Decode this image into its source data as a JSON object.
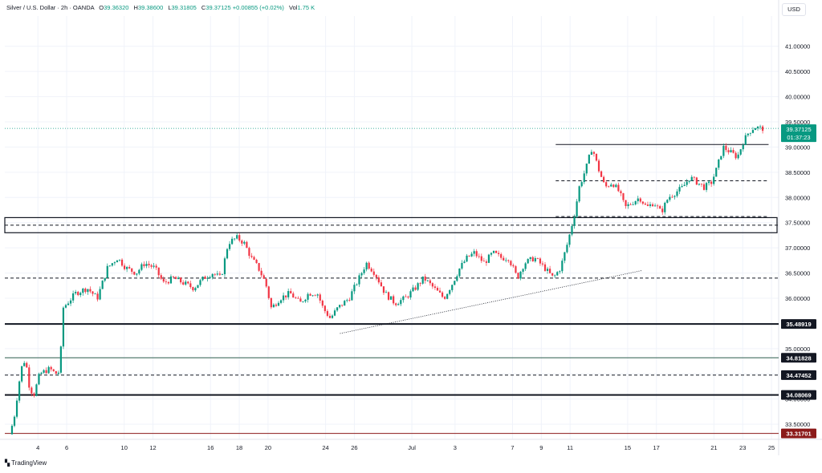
{
  "header": {
    "symbol": "Silver / U.S. Dollar · 2h · OANDA",
    "open_label": "O",
    "open": "39.36320",
    "high_label": "H",
    "high": "39.38600",
    "low_label": "L",
    "low": "39.31805",
    "close_label": "C",
    "close": "39.37125",
    "change": "+0.00855 (+0.02%)",
    "volume_label": "Vol",
    "volume": "1.75 K"
  },
  "currency_button": "USD",
  "branding": "TradingView",
  "chart_data": {
    "type": "candlestick",
    "y_range": [
      33.2,
      41.6
    ],
    "y_ticks": [
      "41.00000",
      "40.50000",
      "40.00000",
      "39.50000",
      "39.00000",
      "38.50000",
      "38.00000",
      "37.50000",
      "37.00000",
      "36.50000",
      "36.00000",
      "35.50000",
      "35.00000",
      "34.50000",
      "34.00000",
      "33.50000"
    ],
    "y_tick_values": [
      41.0,
      40.5,
      40.0,
      39.5,
      39.0,
      38.5,
      38.0,
      37.5,
      37.0,
      36.5,
      36.0,
      35.5,
      35.0,
      34.5,
      34.0,
      33.5
    ],
    "x_ticks": [
      {
        "label": "4",
        "day": 4
      },
      {
        "label": "6",
        "day": 6
      },
      {
        "label": "10",
        "day": 10
      },
      {
        "label": "12",
        "day": 12
      },
      {
        "label": "16",
        "day": 16
      },
      {
        "label": "18",
        "day": 18
      },
      {
        "label": "20",
        "day": 20
      },
      {
        "label": "24",
        "day": 24
      },
      {
        "label": "26",
        "day": 26
      },
      {
        "label": "Jul",
        "day": 30
      },
      {
        "label": "3",
        "day": 33
      },
      {
        "label": "7",
        "day": 37
      },
      {
        "label": "9",
        "day": 39
      },
      {
        "label": "11",
        "day": 41
      },
      {
        "label": "15",
        "day": 45
      },
      {
        "label": "17",
        "day": 47
      },
      {
        "label": "21",
        "day": 51
      },
      {
        "label": "23",
        "day": 53
      },
      {
        "label": "25",
        "day": 55
      }
    ],
    "price_path": [
      [
        2.2,
        33.3
      ],
      [
        2.5,
        33.6
      ],
      [
        3.0,
        34.6
      ],
      [
        3.3,
        34.8
      ],
      [
        3.6,
        34.2
      ],
      [
        3.9,
        34.1
      ],
      [
        4.3,
        34.5
      ],
      [
        5.0,
        34.6
      ],
      [
        5.4,
        34.5
      ],
      [
        5.7,
        34.55
      ],
      [
        5.9,
        35.8
      ],
      [
        6.2,
        35.9
      ],
      [
        6.8,
        36.1
      ],
      [
        7.6,
        36.2
      ],
      [
        8.3,
        36.0
      ],
      [
        9.0,
        36.6
      ],
      [
        9.7,
        36.8
      ],
      [
        10.3,
        36.6
      ],
      [
        11.0,
        36.5
      ],
      [
        11.6,
        36.7
      ],
      [
        12.3,
        36.6
      ],
      [
        12.9,
        36.3
      ],
      [
        13.6,
        36.4
      ],
      [
        14.3,
        36.3
      ],
      [
        15.0,
        36.2
      ],
      [
        15.7,
        36.4
      ],
      [
        16.3,
        36.5
      ],
      [
        16.9,
        36.4
      ],
      [
        17.4,
        37.1
      ],
      [
        18.0,
        37.2
      ],
      [
        18.5,
        37.1
      ],
      [
        19.0,
        36.8
      ],
      [
        19.5,
        36.6
      ],
      [
        20.0,
        36.3
      ],
      [
        20.4,
        35.8
      ],
      [
        21.0,
        36.0
      ],
      [
        21.7,
        36.1
      ],
      [
        22.4,
        35.9
      ],
      [
        23.0,
        36.1
      ],
      [
        23.6,
        36.1
      ],
      [
        24.0,
        35.8
      ],
      [
        24.5,
        35.6
      ],
      [
        25.0,
        35.8
      ],
      [
        25.8,
        36.0
      ],
      [
        26.5,
        36.4
      ],
      [
        27.0,
        36.7
      ],
      [
        27.6,
        36.5
      ],
      [
        28.3,
        36.1
      ],
      [
        29.0,
        35.9
      ],
      [
        29.7,
        36.0
      ],
      [
        30.4,
        36.2
      ],
      [
        31.0,
        36.4
      ],
      [
        31.7,
        36.2
      ],
      [
        32.4,
        36.0
      ],
      [
        33.0,
        36.3
      ],
      [
        33.5,
        36.6
      ],
      [
        34.0,
        36.8
      ],
      [
        34.5,
        36.9
      ],
      [
        35.2,
        36.7
      ],
      [
        35.8,
        36.9
      ],
      [
        36.4,
        36.8
      ],
      [
        36.9,
        36.8
      ],
      [
        37.5,
        36.4
      ],
      [
        38.0,
        36.7
      ],
      [
        38.7,
        36.8
      ],
      [
        39.4,
        36.6
      ],
      [
        40.0,
        36.4
      ],
      [
        40.5,
        36.6
      ],
      [
        41.0,
        37.1
      ],
      [
        41.5,
        37.7
      ],
      [
        41.8,
        38.2
      ],
      [
        42.3,
        38.6
      ],
      [
        42.7,
        39.0
      ],
      [
        43.1,
        38.6
      ],
      [
        43.6,
        38.2
      ],
      [
        44.1,
        38.3
      ],
      [
        44.6,
        38.1
      ],
      [
        45.0,
        37.8
      ],
      [
        45.5,
        37.9
      ],
      [
        46.0,
        38.0
      ],
      [
        46.5,
        37.8
      ],
      [
        47.0,
        37.9
      ],
      [
        47.5,
        37.7
      ],
      [
        48.0,
        38.0
      ],
      [
        48.5,
        38.1
      ],
      [
        49.0,
        38.2
      ],
      [
        49.5,
        38.4
      ],
      [
        50.0,
        38.3
      ],
      [
        50.5,
        38.2
      ],
      [
        51.0,
        38.3
      ],
      [
        51.4,
        38.6
      ],
      [
        51.8,
        39.0
      ],
      [
        52.3,
        38.9
      ],
      [
        52.8,
        38.8
      ],
      [
        53.2,
        39.1
      ],
      [
        53.6,
        39.3
      ],
      [
        54.0,
        39.4
      ],
      [
        54.4,
        39.37
      ]
    ],
    "horizontal_levels": [
      {
        "value": 35.48919,
        "label": "35.48919",
        "style": "thick",
        "color": "#131722",
        "label_bg": "#131722",
        "label_color": "#ffffff"
      },
      {
        "value": 34.81828,
        "label": "34.81828",
        "style": "solid",
        "color": "#2f5f4f",
        "label_bg": "#131722",
        "label_color": "#ffffff"
      },
      {
        "value": 34.47452,
        "label": "34.47452",
        "style": "dashed",
        "color": "#131722",
        "label_bg": "#131722",
        "label_color": "#ffffff"
      },
      {
        "value": 34.08069,
        "label": "34.08069",
        "style": "thick",
        "color": "#131722",
        "label_bg": "#131722",
        "label_color": "#ffffff"
      },
      {
        "value": 33.31701,
        "label": "33.31701",
        "style": "solid",
        "color": "#8b1a1a",
        "label_bg": "#8b1a1a",
        "label_color": "#ffffff"
      },
      {
        "value": 36.4,
        "label": "",
        "style": "dashed",
        "color": "#131722"
      },
      {
        "value": 37.45,
        "label": "",
        "style": "dashed",
        "color": "#131722"
      }
    ],
    "zone": {
      "top": 37.6,
      "bottom": 37.3
    },
    "partial_levels": [
      {
        "value": 39.05,
        "from_day": 40.0,
        "style": "solid"
      },
      {
        "value": 38.33,
        "from_day": 40.0,
        "style": "dashed"
      },
      {
        "value": 37.62,
        "from_day": 40.0,
        "style": "dashed"
      }
    ],
    "trendline": {
      "from": [
        25.0,
        35.3
      ],
      "to": [
        46.0,
        36.55
      ]
    },
    "last_price": {
      "value": 39.37125,
      "label": "39.37125",
      "countdown": "01:37:23",
      "color": "#089981"
    },
    "colors": {
      "up": "#089981",
      "down": "#f23645",
      "grid": "#f0f3fa",
      "axis_text": "#131722"
    }
  }
}
